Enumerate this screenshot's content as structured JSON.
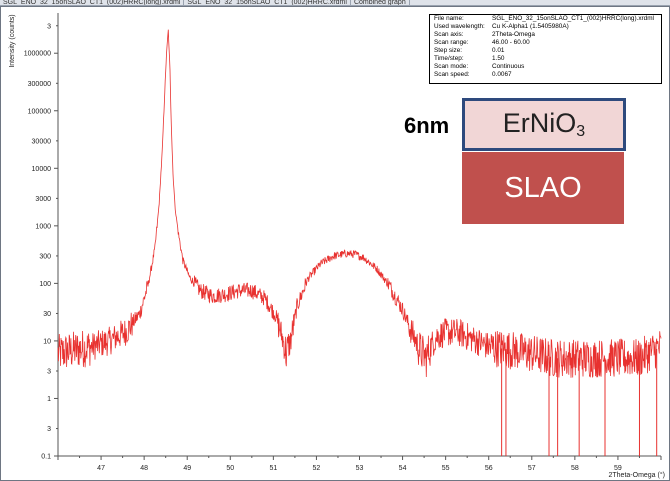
{
  "tabs": [
    "SGL_ENO_32_15onSLAO_CT1_(002)HRRC(long).xrdml",
    "SGL_ENO_32_15onSLAO_CT1_(002)HRRC.xrdml",
    "Combined graph"
  ],
  "scan_info": [
    {
      "label": "File name:",
      "value": "SGL_ENO_32_15onSLAO_CT1_(002)HRRC(long).xrdml"
    },
    {
      "label": "Used wavelength:",
      "value": "Cu K-Alpha1 (1.5405980A)"
    },
    {
      "label": "Scan axis:",
      "value": "2Theta-Omega"
    },
    {
      "label": "Scan range:",
      "value": "46.00 - 60.00"
    },
    {
      "label": "Step size:",
      "value": "0.01"
    },
    {
      "label": "Time/step:",
      "value": "1.50"
    },
    {
      "label": "Scan mode:",
      "value": "Continuous"
    },
    {
      "label": "Scan speed:",
      "value": "0.0067"
    }
  ],
  "layer_stack": {
    "thickness_label": "6nm",
    "film": {
      "text": "ErNiO",
      "subscript": "3"
    },
    "substrate": {
      "text": "SLAO"
    },
    "colors": {
      "film_fill": "#f1d6d6",
      "film_border": "#2e4a7d",
      "substrate_fill": "#c0504d"
    }
  },
  "chart_data": {
    "type": "line",
    "title": "",
    "xlabel": "2Theta-Omega (°)",
    "ylabel": "Intensity (counts)",
    "xlim": [
      46.0,
      60.0
    ],
    "ylim": [
      0.1,
      5000000
    ],
    "yscale": "log",
    "x_ticks": [
      47,
      48,
      49,
      50,
      51,
      52,
      53,
      54,
      55,
      56,
      57,
      58,
      59
    ],
    "y_major_ticks": [
      {
        "value": 0.1,
        "label": "0.1"
      },
      {
        "value": 1,
        "label": "1"
      },
      {
        "value": 10,
        "label": "10"
      },
      {
        "value": 100,
        "label": "100"
      },
      {
        "value": 1000,
        "label": "1000"
      },
      {
        "value": 10000,
        "label": "10000"
      },
      {
        "value": 100000,
        "label": "100000"
      },
      {
        "value": 1000000,
        "label": "1000000"
      }
    ],
    "y_minor_ticks": [
      {
        "value": 0.3,
        "label": "3"
      },
      {
        "value": 3,
        "label": "3"
      },
      {
        "value": 30,
        "label": "30"
      },
      {
        "value": 300,
        "label": "300"
      },
      {
        "value": 3000,
        "label": "3000"
      },
      {
        "value": 30000,
        "label": "30000"
      },
      {
        "value": 300000,
        "label": "300000"
      },
      {
        "value": 3000000,
        "label": "3"
      }
    ],
    "grid": false,
    "series": [
      {
        "color": "#e8312f",
        "x": [
          46.0,
          46.4,
          46.8,
          47.2,
          47.6,
          47.9,
          48.1,
          48.25,
          48.35,
          48.42,
          48.47,
          48.52,
          48.56,
          48.6,
          48.63,
          48.67,
          48.72,
          48.8,
          48.9,
          49.05,
          49.3,
          49.6,
          49.9,
          50.2,
          50.5,
          50.8,
          51.05,
          51.2,
          51.3,
          51.4,
          51.55,
          51.8,
          52.1,
          52.4,
          52.7,
          52.9,
          53.1,
          53.4,
          53.7,
          54.0,
          54.2,
          54.4,
          54.55,
          54.65,
          54.8,
          55.0,
          55.3,
          55.6,
          56.0,
          56.5,
          57.0,
          57.5,
          58.0,
          58.5,
          59.0,
          59.5,
          60.0
        ],
        "y": [
          6,
          7,
          8,
          10,
          15,
          30,
          100,
          400,
          2500,
          20000,
          150000,
          1000000,
          2500000,
          500000,
          60000,
          8000,
          2000,
          700,
          250,
          130,
          75,
          60,
          65,
          75,
          75,
          55,
          28,
          12,
          6,
          10,
          40,
          120,
          220,
          300,
          330,
          320,
          280,
          180,
          90,
          35,
          15,
          7,
          5,
          8,
          12,
          14,
          14,
          11,
          8,
          7,
          6,
          5,
          5,
          5,
          5,
          5,
          8
        ],
        "noise_dips": [
          56.3,
          56.4,
          57.4,
          57.6,
          58.1,
          58.7,
          59.5,
          59.9
        ]
      }
    ]
  }
}
